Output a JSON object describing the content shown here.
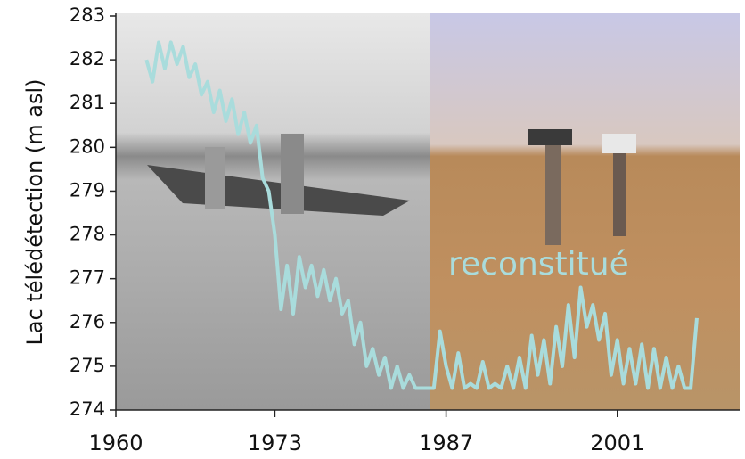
{
  "chart_data": {
    "type": "line",
    "ylabel": "Lac télédétection (m asl)",
    "annotation": "reconstitué",
    "xlim": [
      1960,
      2011
    ],
    "xticks": [
      1960,
      1973,
      1987,
      2001
    ],
    "ylim": [
      274,
      283
    ],
    "yticks": [
      274,
      275,
      276,
      277,
      278,
      279,
      280,
      281,
      282,
      283
    ],
    "series": [
      {
        "color": "#a9dcdc",
        "x": [
          1962.5,
          1963,
          1963.5,
          1964,
          1964.5,
          1965,
          1965.5,
          1966,
          1966.5,
          1967,
          1967.5,
          1968,
          1968.5,
          1969,
          1969.5,
          1970,
          1970.5,
          1971,
          1971.5,
          1972,
          1972.5,
          1973,
          1973.5,
          1974,
          1974.5,
          1975,
          1975.5,
          1976,
          1976.5,
          1977,
          1977.5,
          1978,
          1978.5,
          1979,
          1979.5,
          1980,
          1980.5,
          1981,
          1981.5,
          1982,
          1982.5,
          1983,
          1983.5,
          1984,
          1984.5,
          1985,
          1985.5,
          1986,
          1986.5,
          1987,
          1987.5,
          1988,
          1988.5,
          1989,
          1989.5,
          1990,
          1990.5,
          1991,
          1991.5,
          1992,
          1992.5,
          1993,
          1993.5,
          1994,
          1994.5,
          1995,
          1995.5,
          1996,
          1996.5,
          1997,
          1997.5,
          1998,
          1998.5,
          1999,
          1999.5,
          2000,
          2000.5,
          2001,
          2001.5,
          2002,
          2002.5,
          2003,
          2003.5,
          2004,
          2004.5,
          2005,
          2005.5,
          2006,
          2006.5,
          2007,
          2007.5
        ],
        "values": [
          282.0,
          281.5,
          282.4,
          281.8,
          282.4,
          281.9,
          282.3,
          281.6,
          281.9,
          281.2,
          281.5,
          280.8,
          281.3,
          280.6,
          281.1,
          280.3,
          280.8,
          280.1,
          280.5,
          279.3,
          279.0,
          278.0,
          276.3,
          277.3,
          276.2,
          277.5,
          276.8,
          277.3,
          276.6,
          277.2,
          276.5,
          277.0,
          276.2,
          276.5,
          275.5,
          276.0,
          275.0,
          275.4,
          274.8,
          275.2,
          274.5,
          275.0,
          274.5,
          274.8,
          274.5,
          274.5,
          274.5,
          274.5,
          275.8,
          275.0,
          274.5,
          275.3,
          274.5,
          274.6,
          274.5,
          275.1,
          274.5,
          274.6,
          274.5,
          275.0,
          274.5,
          275.2,
          274.5,
          275.7,
          274.8,
          275.6,
          274.6,
          275.9,
          275.0,
          276.4,
          275.2,
          276.8,
          275.9,
          276.4,
          275.6,
          276.2,
          274.8,
          275.6,
          274.6,
          275.4,
          274.6,
          275.5,
          274.5,
          275.4,
          274.5,
          275.2,
          274.5,
          275.0,
          274.5,
          274.5,
          276.1
        ]
      }
    ]
  }
}
